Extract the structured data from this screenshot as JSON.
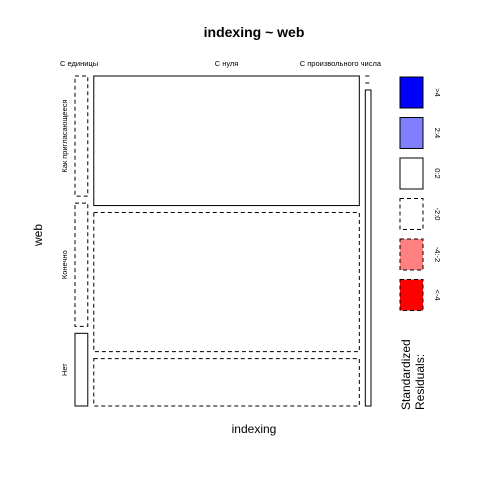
{
  "chart_data": {
    "type": "mosaic",
    "title": "indexing ~ web",
    "xlabel": "indexing",
    "ylabel": "web",
    "x_levels": [
      "С единицы",
      "С нуля",
      "С произвольного числа"
    ],
    "y_levels": [
      "Как пригласающееся",
      "Конечно",
      "Нет"
    ],
    "x_proportions": [
      0.045,
      0.935,
      0.02
    ],
    "cells": [
      {
        "x": "С единицы",
        "y": "Как пригласающееся",
        "share": 0.38,
        "residual_band": "-2:0"
      },
      {
        "x": "С единицы",
        "y": "Конечно",
        "share": 0.39,
        "residual_band": "-2:0"
      },
      {
        "x": "С единицы",
        "y": "Нет",
        "share": 0.23,
        "residual_band": "0:2"
      },
      {
        "x": "С нуля",
        "y": "Как пригласающееся",
        "share": 0.41,
        "residual_band": "0:2"
      },
      {
        "x": "С нуля",
        "y": "Конечно",
        "share": 0.44,
        "residual_band": "-2:0"
      },
      {
        "x": "С нуля",
        "y": "Нет",
        "share": 0.15,
        "residual_band": "-2:0"
      },
      {
        "x": "С произвольного числа",
        "y": "Как пригласающееся",
        "share": 0.0,
        "residual_band": "-2:0"
      },
      {
        "x": "С произвольного числа",
        "y": "Конечно",
        "share": 0.0,
        "residual_band": "-2:0"
      },
      {
        "x": "С произвольного числа",
        "y": "Нет",
        "share": 1.0,
        "residual_band": "0:2"
      }
    ],
    "legend": {
      "title_line1": "Standardized",
      "title_line2": "Residuals:",
      "placement": "right",
      "bands": [
        {
          "label": ">4",
          "fill": "#0000ff",
          "dashed": false
        },
        {
          "label": "2:4",
          "fill": "#8080ff",
          "dashed": false
        },
        {
          "label": "0:2",
          "fill": "#ffffff",
          "dashed": false
        },
        {
          "label": "-2:0",
          "fill": "#ffffff",
          "dashed": true
        },
        {
          "label": "-4:-2",
          "fill": "#ff8080",
          "dashed": true
        },
        {
          "label": "<-4",
          "fill": "#ff0000",
          "dashed": true
        }
      ]
    }
  }
}
